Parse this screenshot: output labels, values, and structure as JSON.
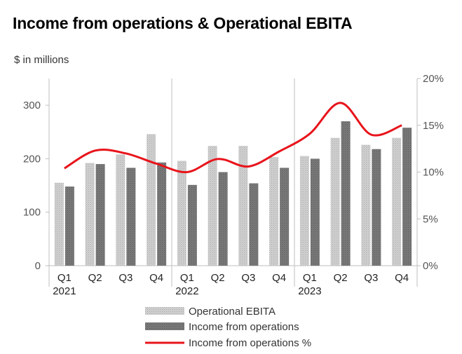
{
  "title": "Income from operations & Operational EBITA",
  "unit_label": "$ in millions",
  "chart_data": {
    "type": "bar",
    "title": "Income from operations & Operational EBITA",
    "ylabel": "$ in millions",
    "ylim": [
      0,
      350
    ],
    "y2lim": [
      0,
      20
    ],
    "yticks": [
      0,
      100,
      200,
      300
    ],
    "y2ticks": [
      "0%",
      "5%",
      "10%",
      "15%",
      "20%"
    ],
    "y2tick_values": [
      0,
      5,
      10,
      15,
      20
    ],
    "categories": [
      "Q1",
      "Q2",
      "Q3",
      "Q4",
      "Q1",
      "Q2",
      "Q3",
      "Q4",
      "Q1",
      "Q2",
      "Q3",
      "Q4"
    ],
    "years": [
      {
        "label": "2021",
        "start": 0
      },
      {
        "label": "2022",
        "start": 4
      },
      {
        "label": "2023",
        "start": 8
      }
    ],
    "series": [
      {
        "name": "Operational EBITA",
        "type": "bar",
        "color": "#c8c8c8",
        "values": [
          155,
          192,
          208,
          246,
          196,
          224,
          224,
          203,
          205,
          239,
          226,
          239
        ]
      },
      {
        "name": "Income from operations",
        "type": "bar",
        "color": "#707070",
        "values": [
          148,
          190,
          183,
          193,
          151,
          175,
          154,
          183,
          200,
          270,
          218,
          258
        ]
      },
      {
        "name": "Income from operations %",
        "type": "line",
        "axis": "secondary",
        "color": "#e8141b",
        "values": [
          10.4,
          12.3,
          12.0,
          10.9,
          10.0,
          11.4,
          10.6,
          12.2,
          14.1,
          17.4,
          14.0,
          15.0
        ]
      }
    ],
    "grid": false,
    "legend": "bottom"
  }
}
